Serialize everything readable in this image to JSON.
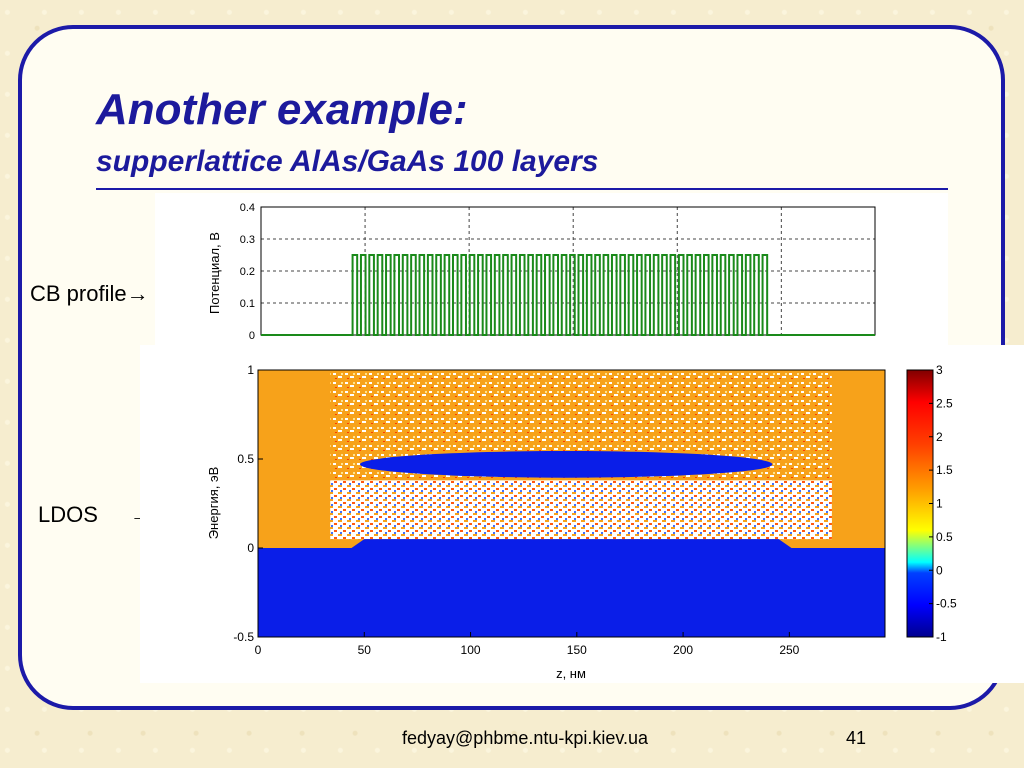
{
  "slide": {
    "title": "Another example:",
    "subtitle": "supperlattice AlAs/GaAs 100 layers",
    "cb_label": "CB profile",
    "ldos_label": "LDOS",
    "arrow": "→",
    "footer_email": "fedyay@phbme.ntu-kpi.kiev.ua",
    "page_number": "41"
  },
  "colors": {
    "frame": "#1c1aa8",
    "title": "#1c1a9c",
    "potential_line": "#1a8a1a"
  },
  "chart_data": [
    {
      "type": "line",
      "title": "",
      "xlabel": "",
      "ylabel": "Потенциал, В",
      "xlim": [
        0,
        295
      ],
      "ylim": [
        0,
        0.4
      ],
      "yticks": [
        "0",
        "0.1",
        "0.2",
        "0.3",
        "0.4"
      ],
      "grid": true,
      "series": [
        {
          "description_of_shape": "",
          "baseline": 0,
          "barrier_height": 0.25,
          "start_x": 44,
          "end_x": 245,
          "periods": 50
        }
      ]
    },
    {
      "type": "heatmap",
      "title": "",
      "xlabel": "z, нм",
      "ylabel": "Энергия, эВ",
      "xlim": [
        0,
        295
      ],
      "ylim": [
        -0.5,
        1
      ],
      "xticks": [
        "0",
        "50",
        "100",
        "150",
        "200",
        "250"
      ],
      "yticks": [
        "-0.5",
        "0",
        "0.5",
        "1"
      ],
      "colorbar": {
        "min": -1,
        "max": 3,
        "ticks": [
          "-1",
          "-0.5",
          "0",
          "0.5",
          "1",
          "1.5",
          "2",
          "2.5",
          "3"
        ]
      }
    }
  ]
}
